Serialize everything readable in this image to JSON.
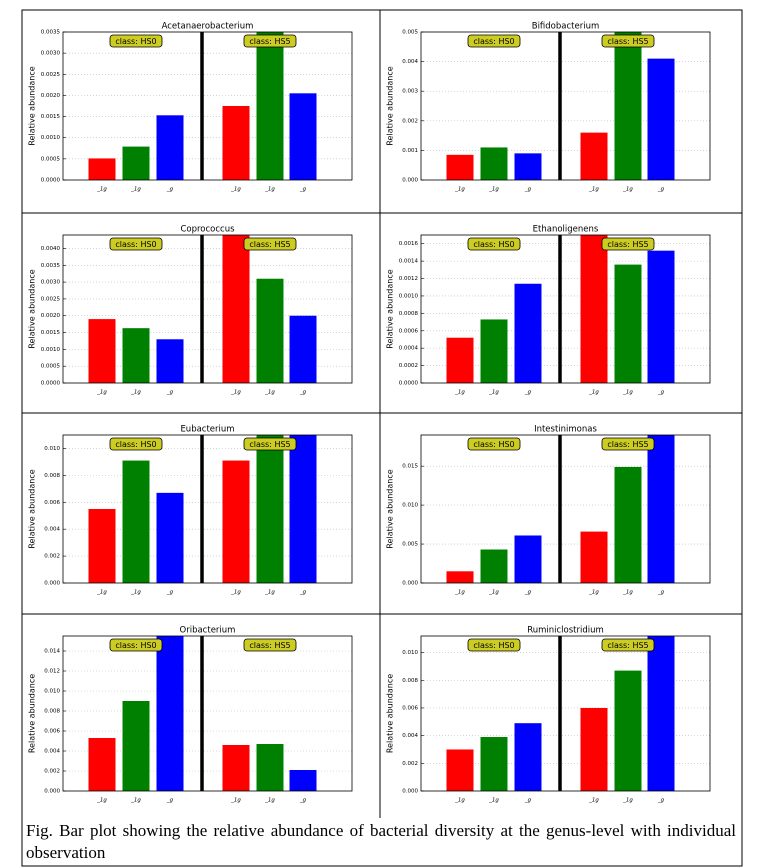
{
  "charts": [
    {
      "chart_data": {
        "type": "bar",
        "title": "Acetanaerobacterium",
        "ylabel": "Relative abundance",
        "class_labels": [
          "class: HS0",
          "class: HS5"
        ],
        "categories": [
          "_1g",
          "_1g",
          "_g",
          "_1g",
          "_1g",
          "_g"
        ],
        "values": [
          0.00051,
          0.00079,
          0.00153,
          0.00175,
          0.0035,
          0.00205
        ],
        "colors": [
          "#ff0000",
          "#008000",
          "#0000ff",
          "#ff0000",
          "#008000",
          "#0000ff"
        ],
        "ylim": [
          0,
          0.0035
        ],
        "yticks": [
          {
            "value": 0,
            "label": "0.0000"
          },
          {
            "value": 0.0005,
            "label": "0.0005"
          },
          {
            "value": 0.001,
            "label": "0.0010"
          },
          {
            "value": 0.0015,
            "label": "0.0015"
          },
          {
            "value": 0.002,
            "label": "0.0020"
          },
          {
            "value": 0.0025,
            "label": "0.0025"
          },
          {
            "value": 0.003,
            "label": "0.0030"
          },
          {
            "value": 0.0035,
            "label": "0.0035"
          }
        ],
        "grid": true
      }
    },
    {
      "chart_data": {
        "type": "bar",
        "title": "Bifidobacterium",
        "ylabel": "Relative abundance",
        "class_labels": [
          "class: HS0",
          "class: HS5"
        ],
        "categories": [
          "_1g",
          "_1g",
          "_g",
          "_1g",
          "_1g",
          "_g"
        ],
        "values": [
          0.00085,
          0.0011,
          0.0009,
          0.0016,
          0.005,
          0.0041
        ],
        "colors": [
          "#ff0000",
          "#008000",
          "#0000ff",
          "#ff0000",
          "#008000",
          "#0000ff"
        ],
        "ylim": [
          0,
          0.005
        ],
        "yticks": [
          {
            "value": 0,
            "label": "0.000"
          },
          {
            "value": 0.001,
            "label": "0.001"
          },
          {
            "value": 0.002,
            "label": "0.002"
          },
          {
            "value": 0.003,
            "label": "0.003"
          },
          {
            "value": 0.004,
            "label": "0.004"
          },
          {
            "value": 0.005,
            "label": "0.005"
          }
        ],
        "grid": true
      }
    },
    {
      "chart_data": {
        "type": "bar",
        "title": "Coprococcus",
        "ylabel": "Relative abundance",
        "class_labels": [
          "class: HS0",
          "class: HS5"
        ],
        "categories": [
          "_1g",
          "_1g",
          "_g",
          "_1g",
          "_1g",
          "_g"
        ],
        "values": [
          0.0019,
          0.00163,
          0.0013,
          0.0044,
          0.0031,
          0.002
        ],
        "colors": [
          "#ff0000",
          "#008000",
          "#0000ff",
          "#ff0000",
          "#008000",
          "#0000ff"
        ],
        "ylim": [
          0,
          0.0044
        ],
        "yticks": [
          {
            "value": 0,
            "label": "0.0000"
          },
          {
            "value": 0.0005,
            "label": "0.0005"
          },
          {
            "value": 0.001,
            "label": "0.0010"
          },
          {
            "value": 0.0015,
            "label": "0.0015"
          },
          {
            "value": 0.002,
            "label": "0.0020"
          },
          {
            "value": 0.0025,
            "label": "0.0025"
          },
          {
            "value": 0.003,
            "label": "0.0030"
          },
          {
            "value": 0.0035,
            "label": "0.0035"
          },
          {
            "value": 0.004,
            "label": "0.0040"
          }
        ],
        "grid": true
      }
    },
    {
      "chart_data": {
        "type": "bar",
        "title": "Ethanoligenens",
        "ylabel": "Relative abundance",
        "class_labels": [
          "class: HS0",
          "class: HS5"
        ],
        "categories": [
          "_1g",
          "_1g",
          "_g",
          "_1g",
          "_1g",
          "_g"
        ],
        "values": [
          0.00052,
          0.00073,
          0.00114,
          0.0017,
          0.00136,
          0.00152
        ],
        "colors": [
          "#ff0000",
          "#008000",
          "#0000ff",
          "#ff0000",
          "#008000",
          "#0000ff"
        ],
        "ylim": [
          0,
          0.0017
        ],
        "yticks": [
          {
            "value": 0,
            "label": "0.0000"
          },
          {
            "value": 0.0002,
            "label": "0.0002"
          },
          {
            "value": 0.0004,
            "label": "0.0004"
          },
          {
            "value": 0.0006,
            "label": "0.0006"
          },
          {
            "value": 0.0008,
            "label": "0.0008"
          },
          {
            "value": 0.001,
            "label": "0.0010"
          },
          {
            "value": 0.0012,
            "label": "0.0012"
          },
          {
            "value": 0.0014,
            "label": "0.0014"
          },
          {
            "value": 0.0016,
            "label": "0.0016"
          }
        ],
        "grid": true
      }
    },
    {
      "chart_data": {
        "type": "bar",
        "title": "Eubacterium",
        "ylabel": "Relative abundance",
        "class_labels": [
          "class: HS0",
          "class: HS5"
        ],
        "categories": [
          "_1g",
          "_1g",
          "_g",
          "_1g",
          "_1g",
          "_g"
        ],
        "values": [
          0.0055,
          0.0091,
          0.0067,
          0.0091,
          0.011,
          0.011
        ],
        "colors": [
          "#ff0000",
          "#008000",
          "#0000ff",
          "#ff0000",
          "#008000",
          "#0000ff"
        ],
        "ylim": [
          0,
          0.011
        ],
        "yticks": [
          {
            "value": 0,
            "label": "0.000"
          },
          {
            "value": 0.002,
            "label": "0.002"
          },
          {
            "value": 0.004,
            "label": "0.004"
          },
          {
            "value": 0.006,
            "label": "0.006"
          },
          {
            "value": 0.008,
            "label": "0.008"
          },
          {
            "value": 0.01,
            "label": "0.010"
          }
        ],
        "grid": true
      }
    },
    {
      "chart_data": {
        "type": "bar",
        "title": "Intestinimonas",
        "ylabel": "Relative abundance",
        "class_labels": [
          "class: HS0",
          "class: HS5"
        ],
        "categories": [
          "_1g",
          "_1g",
          "_g",
          "_1g",
          "_1g",
          "_g"
        ],
        "values": [
          0.0015,
          0.0043,
          0.0061,
          0.0066,
          0.0149,
          0.019
        ],
        "colors": [
          "#ff0000",
          "#008000",
          "#0000ff",
          "#ff0000",
          "#008000",
          "#0000ff"
        ],
        "ylim": [
          0,
          0.019
        ],
        "yticks": [
          {
            "value": 0,
            "label": "0.000"
          },
          {
            "value": 0.005,
            "label": "0.005"
          },
          {
            "value": 0.01,
            "label": "0.010"
          },
          {
            "value": 0.015,
            "label": "0.015"
          }
        ],
        "grid": true
      }
    },
    {
      "chart_data": {
        "type": "bar",
        "title": "Oribacterium",
        "ylabel": "Relative abundance",
        "class_labels": [
          "class: HS0",
          "class: HS5"
        ],
        "categories": [
          "_1g",
          "_1g",
          "_g",
          "_1g",
          "_1g",
          "_g"
        ],
        "values": [
          0.0053,
          0.009,
          0.0155,
          0.0046,
          0.0047,
          0.0021
        ],
        "colors": [
          "#ff0000",
          "#008000",
          "#0000ff",
          "#ff0000",
          "#008000",
          "#0000ff"
        ],
        "ylim": [
          0,
          0.0155
        ],
        "yticks": [
          {
            "value": 0,
            "label": "0.000"
          },
          {
            "value": 0.002,
            "label": "0.002"
          },
          {
            "value": 0.004,
            "label": "0.004"
          },
          {
            "value": 0.006,
            "label": "0.006"
          },
          {
            "value": 0.008,
            "label": "0.008"
          },
          {
            "value": 0.01,
            "label": "0.010"
          },
          {
            "value": 0.012,
            "label": "0.012"
          },
          {
            "value": 0.014,
            "label": "0.014"
          }
        ],
        "grid": true
      }
    },
    {
      "chart_data": {
        "type": "bar",
        "title": "Ruminiclostridium",
        "ylabel": "Relative abundance",
        "class_labels": [
          "class: HS0",
          "class: HS5"
        ],
        "categories": [
          "_1g",
          "_1g",
          "_g",
          "_1g",
          "_1g",
          "_g"
        ],
        "values": [
          0.003,
          0.0039,
          0.0049,
          0.006,
          0.0087,
          0.0112
        ],
        "colors": [
          "#ff0000",
          "#008000",
          "#0000ff",
          "#ff0000",
          "#008000",
          "#0000ff"
        ],
        "ylim": [
          0,
          0.0112
        ],
        "yticks": [
          {
            "value": 0,
            "label": "0.000"
          },
          {
            "value": 0.002,
            "label": "0.002"
          },
          {
            "value": 0.004,
            "label": "0.004"
          },
          {
            "value": 0.006,
            "label": "0.006"
          },
          {
            "value": 0.008,
            "label": "0.008"
          },
          {
            "value": 0.01,
            "label": "0.010"
          }
        ],
        "grid": true
      }
    }
  ],
  "caption": "Fig. Bar plot showing the relative abundance of bacterial diversity at the genus-level with individual observation"
}
